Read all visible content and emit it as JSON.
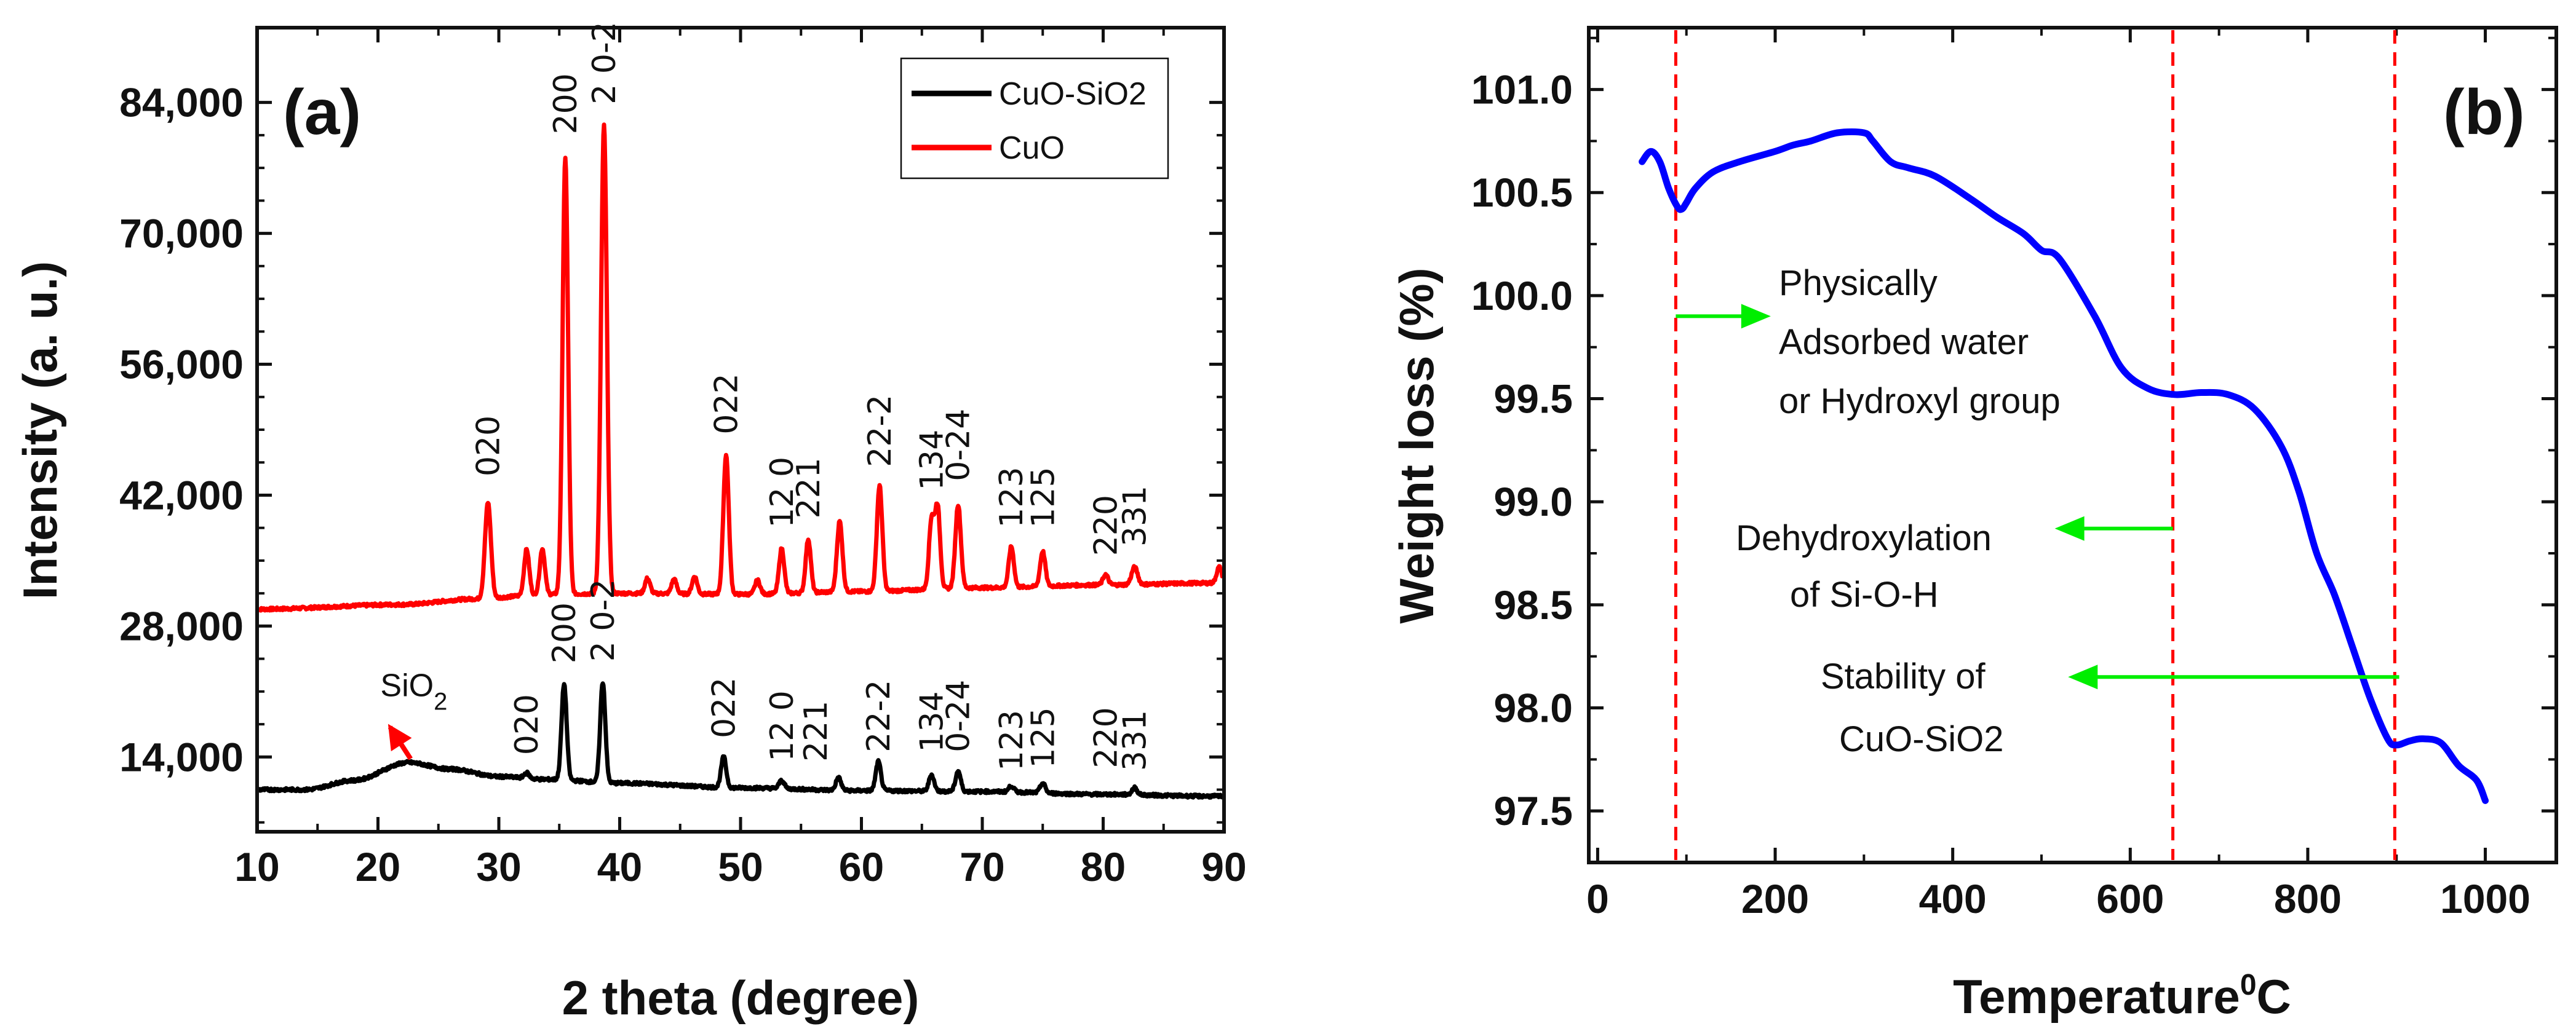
{
  "chart_data": [
    {
      "type": "line",
      "panel_label": "(a)",
      "xlabel": "2 theta (degree)",
      "ylabel": "Intensity (a. u.)",
      "xlim": [
        10,
        90
      ],
      "ylim": [
        6000,
        92000
      ],
      "x_ticks": [
        "10",
        "20",
        "30",
        "40",
        "50",
        "60",
        "70",
        "80",
        "90"
      ],
      "y_ticks": [
        "14,000",
        "28,000",
        "42,000",
        "56,000",
        "70,000",
        "84,000"
      ],
      "legend": [
        {
          "name": "CuO-SiO2",
          "color": "#000000"
        },
        {
          "name": "CuO",
          "color": "#ff0000"
        }
      ],
      "series": [
        {
          "name": "CuO",
          "color": "#ff0000",
          "baseline": 29800,
          "background": [
            [
              10,
              29800
            ],
            [
              22,
              30300
            ],
            [
              28,
              30900
            ],
            [
              34,
              31400
            ],
            [
              40,
              31500
            ],
            [
              50,
              31400
            ],
            [
              60,
              31700
            ],
            [
              70,
              32100
            ],
            [
              80,
              32400
            ],
            [
              89,
              32600
            ]
          ],
          "peaks": [
            {
              "x": 29.1,
              "y": 41200,
              "w": 0.35
            },
            {
              "x": 32.3,
              "y": 36200,
              "w": 0.3
            },
            {
              "x": 33.6,
              "y": 36300,
              "w": 0.3
            },
            {
              "x": 35.5,
              "y": 78000,
              "w": 0.32
            },
            {
              "x": 38.7,
              "y": 81500,
              "w": 0.34
            },
            {
              "x": 42.3,
              "y": 33100,
              "w": 0.3
            },
            {
              "x": 44.5,
              "y": 33000,
              "w": 0.3
            },
            {
              "x": 46.2,
              "y": 33300,
              "w": 0.3
            },
            {
              "x": 48.8,
              "y": 46300,
              "w": 0.32
            },
            {
              "x": 51.4,
              "y": 32900,
              "w": 0.3
            },
            {
              "x": 53.4,
              "y": 36300,
              "w": 0.3
            },
            {
              "x": 55.6,
              "y": 37300,
              "w": 0.3
            },
            {
              "x": 58.2,
              "y": 39200,
              "w": 0.32
            },
            {
              "x": 61.5,
              "y": 43000,
              "w": 0.32
            },
            {
              "x": 65.8,
              "y": 39300,
              "w": 0.3
            },
            {
              "x": 66.3,
              "y": 40700,
              "w": 0.3
            },
            {
              "x": 68.0,
              "y": 41000,
              "w": 0.32
            },
            {
              "x": 72.4,
              "y": 36500,
              "w": 0.3
            },
            {
              "x": 75.0,
              "y": 36000,
              "w": 0.3
            },
            {
              "x": 80.2,
              "y": 33500,
              "w": 0.3
            },
            {
              "x": 82.6,
              "y": 34300,
              "w": 0.35
            },
            {
              "x": 89.6,
              "y": 34300,
              "w": 0.3
            }
          ]
        },
        {
          "name": "CuO-SiO2",
          "color": "#000000",
          "baseline": 10500,
          "background": [
            [
              10,
              10500
            ],
            [
              14,
              10500
            ],
            [
              18,
              11500
            ],
            [
              22.5,
              13400
            ],
            [
              26,
              12700
            ],
            [
              30,
              11900
            ],
            [
              34,
              11600
            ],
            [
              40,
              11200
            ],
            [
              50,
              10700
            ],
            [
              60,
              10400
            ],
            [
              70,
              10300
            ],
            [
              80,
              10000
            ],
            [
              89,
              9800
            ]
          ],
          "peaks": [
            {
              "x": 32.3,
              "y": 12300,
              "w": 0.3
            },
            {
              "x": 35.4,
              "y": 21800,
              "w": 0.3
            },
            {
              "x": 38.6,
              "y": 22000,
              "w": 0.3
            },
            {
              "x": 48.6,
              "y": 14000,
              "w": 0.3
            },
            {
              "x": 53.4,
              "y": 11500,
              "w": 0.3
            },
            {
              "x": 58.1,
              "y": 11800,
              "w": 0.3
            },
            {
              "x": 61.4,
              "y": 13500,
              "w": 0.3
            },
            {
              "x": 65.8,
              "y": 12100,
              "w": 0.3
            },
            {
              "x": 68.0,
              "y": 12500,
              "w": 0.3
            },
            {
              "x": 72.4,
              "y": 10900,
              "w": 0.3
            },
            {
              "x": 75.0,
              "y": 11200,
              "w": 0.3
            },
            {
              "x": 82.6,
              "y": 10700,
              "w": 0.3
            }
          ]
        }
      ],
      "peak_labels_cuo": [
        {
          "text": "020",
          "x": 29.1,
          "y": 44000
        },
        {
          "text": "200",
          "x": 35.5,
          "y": 80600
        },
        {
          "text": "2 0-2",
          "x": 38.7,
          "y": 83800
        },
        {
          "text": "022",
          "x": 48.8,
          "y": 48500
        },
        {
          "text": "12 0",
          "x": 53.4,
          "y": 38500
        },
        {
          "text": "221",
          "x": 55.6,
          "y": 39500
        },
        {
          "text": "22-2",
          "x": 61.5,
          "y": 45000
        },
        {
          "text": "134",
          "x": 65.8,
          "y": 42500
        },
        {
          "text": "0-24",
          "x": 68.0,
          "y": 43500
        },
        {
          "text": "123",
          "x": 72.4,
          "y": 38500
        },
        {
          "text": "125",
          "x": 75.0,
          "y": 38500
        },
        {
          "text": "220",
          "x": 80.2,
          "y": 35500
        },
        {
          "text": "331",
          "x": 82.6,
          "y": 36500
        }
      ],
      "peak_labels_sio2": [
        {
          "text": "020",
          "x": 32.3,
          "y": 14200
        },
        {
          "text": "200",
          "x": 35.4,
          "y": 24000
        },
        {
          "text": "2 0-2",
          "x": 38.6,
          "y": 24200
        },
        {
          "text": "022",
          "x": 48.6,
          "y": 16000
        },
        {
          "text": "12 0",
          "x": 53.4,
          "y": 13500
        },
        {
          "text": "221",
          "x": 56.2,
          "y": 13500
        },
        {
          "text": "22-2",
          "x": 61.4,
          "y": 14500
        },
        {
          "text": "134",
          "x": 65.8,
          "y": 14500
        },
        {
          "text": "0-24",
          "x": 68.0,
          "y": 14500
        },
        {
          "text": "123",
          "x": 72.4,
          "y": 12500
        },
        {
          "text": "125",
          "x": 75.0,
          "y": 12800
        },
        {
          "text": "220",
          "x": 80.2,
          "y": 12800
        },
        {
          "text": "331",
          "x": 82.6,
          "y": 12500
        }
      ],
      "annotation": {
        "text": "SiO",
        "subscript": "2",
        "text_x": 20.2,
        "text_y": 20500,
        "arrow_from": [
          22.7,
          13800
        ],
        "arrow_to": [
          21.0,
          17200
        ],
        "color": "#ff0000"
      }
    },
    {
      "type": "line",
      "panel_label": "(b)",
      "xlabel": "Temperature",
      "xlabel_sup": "0",
      "xlabel_suffix": "C",
      "ylabel": "Weight loss (%)",
      "xlim": [
        -10,
        1080
      ],
      "ylim": [
        97.25,
        101.3
      ],
      "x_ticks": [
        "0",
        "200",
        "400",
        "600",
        "800",
        "1000"
      ],
      "y_ticks": [
        "97.5",
        "98.0",
        "98.5",
        "99.0",
        "99.5",
        "100.0",
        "100.5",
        "101.0"
      ],
      "series": [
        {
          "name": "weight loss",
          "color": "#0000ff",
          "x": [
            50,
            60,
            70,
            80,
            90,
            95,
            100,
            110,
            130,
            160,
            200,
            220,
            240,
            270,
            300,
            310,
            330,
            350,
            380,
            420,
            450,
            480,
            500,
            520,
            560,
            590,
            620,
            650,
            680,
            710,
            740,
            770,
            790,
            810,
            830,
            850,
            870,
            890,
            900,
            915,
            930,
            950,
            970,
            990,
            1000
          ],
          "y": [
            100.65,
            100.7,
            100.65,
            100.52,
            100.43,
            100.42,
            100.45,
            100.52,
            100.6,
            100.65,
            100.7,
            100.73,
            100.75,
            100.79,
            100.79,
            100.75,
            100.65,
            100.62,
            100.58,
            100.47,
            100.38,
            100.3,
            100.22,
            100.18,
            99.9,
            99.65,
            99.55,
            99.52,
            99.53,
            99.52,
            99.45,
            99.27,
            99.05,
            98.75,
            98.55,
            98.3,
            98.05,
            97.85,
            97.82,
            97.84,
            97.85,
            97.83,
            97.72,
            97.65,
            97.55
          ]
        }
      ],
      "vlines": [
        88,
        648,
        898
      ],
      "vline_color": "#ff0000",
      "arrow_color": "#00ee00",
      "notes": [
        {
          "lines": [
            "Physically",
            "Adsorbed water",
            "or Hydroxyl group"
          ]
        },
        {
          "lines": [
            "Dehydroxylation",
            "of Si-O-H"
          ]
        },
        {
          "lines": [
            "Stability of",
            "CuO-SiO2"
          ]
        }
      ],
      "arrows": [
        {
          "from": [
            88,
            99.9
          ],
          "to": [
            195,
            99.9
          ]
        },
        {
          "from": [
            648,
            98.87
          ],
          "to": [
            515,
            98.87
          ]
        },
        {
          "from": [
            903,
            98.15
          ],
          "to": [
            530,
            98.15
          ]
        }
      ]
    }
  ]
}
